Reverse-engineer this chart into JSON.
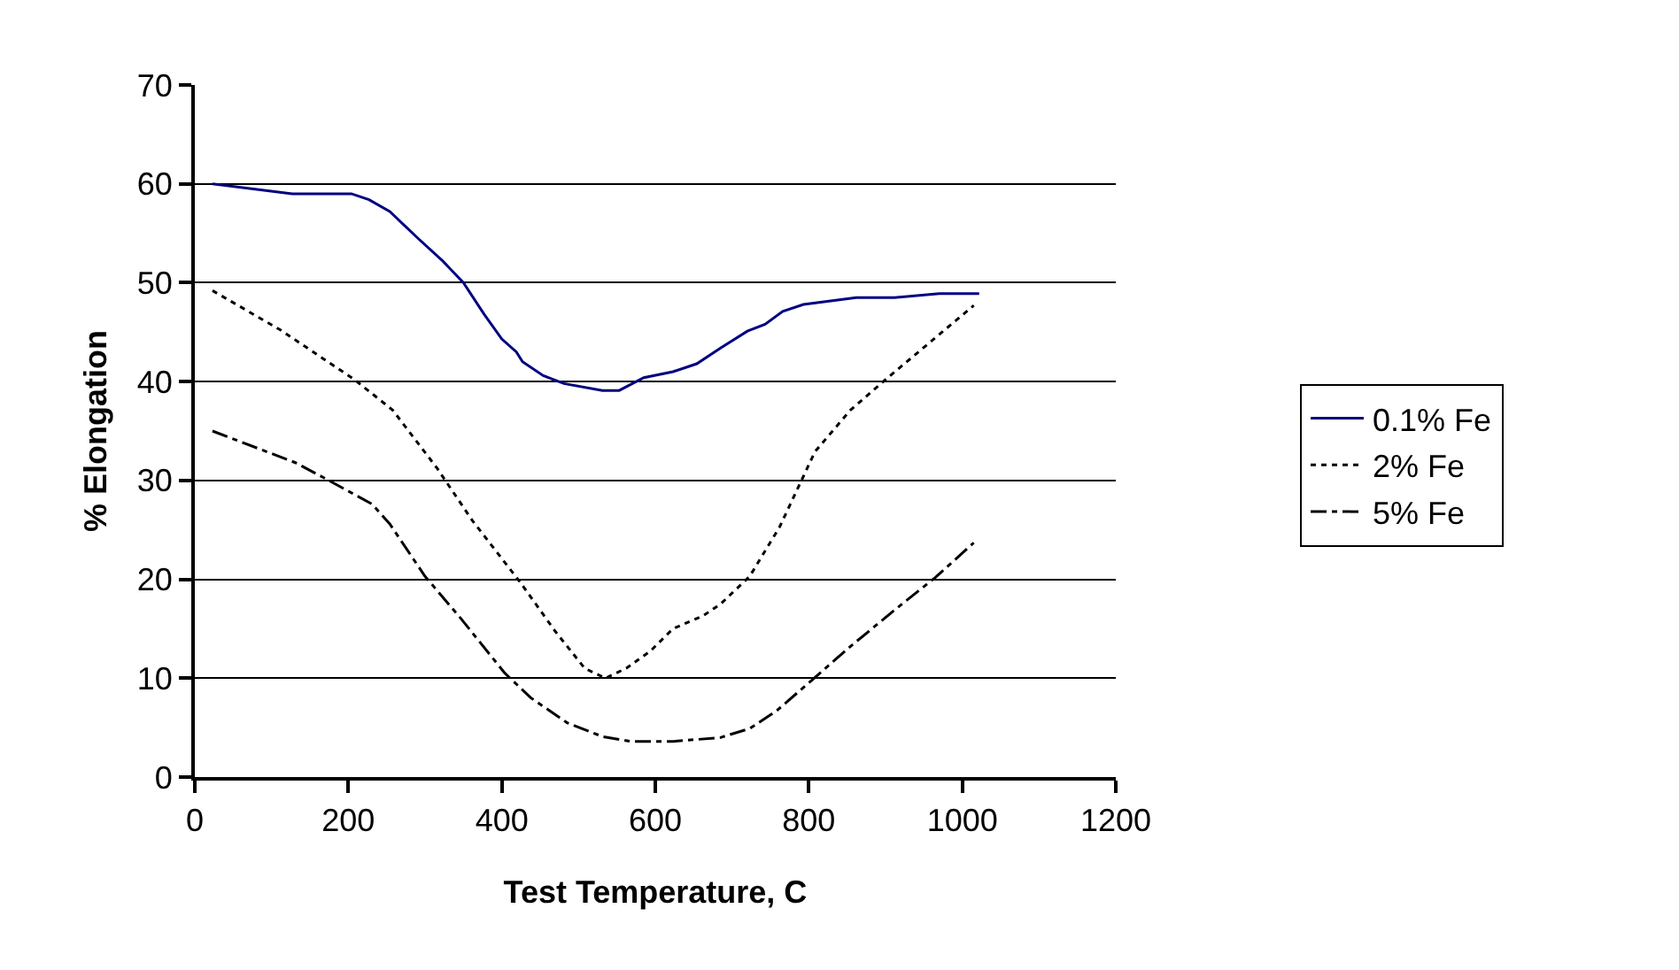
{
  "chart_data": {
    "type": "line",
    "xlabel": "Test Temperature, C",
    "ylabel": "% Elongation",
    "xlim": [
      0,
      1200
    ],
    "xticks": [
      0,
      200,
      400,
      600,
      800,
      1000,
      1200
    ],
    "ylim": [
      0,
      70
    ],
    "yticks": [
      0,
      10,
      20,
      30,
      40,
      50,
      60,
      70
    ],
    "grid": "y",
    "legend": "right",
    "marker": "none",
    "series": [
      {
        "name": "0.1% Fe",
        "color": "#000080",
        "line_style": "solid",
        "x": [
          23,
          127,
          204,
          227,
          254,
          292,
          323,
          350,
          377,
          400,
          419,
          427,
          454,
          481,
          531,
          553,
          585,
          623,
          654,
          685,
          720,
          743,
          766,
          793,
          862,
          912,
          970,
          1022
        ],
        "values": [
          60,
          59,
          59,
          58.4,
          57.2,
          54.4,
          52.2,
          50,
          46.8,
          44.3,
          43,
          42,
          40.6,
          39.8,
          39.1,
          39.1,
          40.4,
          41,
          41.8,
          43.4,
          45.1,
          45.8,
          47.1,
          47.8,
          48.5,
          48.5,
          48.9,
          48.9
        ]
      },
      {
        "name": "2% Fe",
        "color": "#000000",
        "line_style": "dotted",
        "x": [
          23,
          112,
          208,
          258,
          316,
          362,
          424,
          470,
          508,
          535,
          562,
          593,
          623,
          662,
          685,
          723,
          762,
          808,
          854,
          900,
          946,
          1015
        ],
        "values": [
          49.2,
          45.2,
          40.2,
          37.1,
          31.2,
          25.9,
          19.7,
          14.7,
          11,
          10,
          11,
          12.7,
          15,
          16.3,
          17.5,
          20.3,
          25.3,
          32.9,
          37.1,
          40.2,
          43.2,
          47.7
        ]
      },
      {
        "name": "5% Fe",
        "color": "#000000",
        "line_style": "dashdot",
        "x": [
          23,
          131,
          177,
          231,
          254,
          300,
          346,
          404,
          438,
          485,
          531,
          569,
          623,
          685,
          723,
          758,
          804,
          854,
          915,
          965,
          1015
        ],
        "values": [
          35,
          31.8,
          29.9,
          27.6,
          25.6,
          20.3,
          16.1,
          10.5,
          8,
          5.5,
          4.1,
          3.6,
          3.6,
          4,
          4.9,
          6.7,
          9.8,
          13.2,
          17.1,
          20.2,
          23.7
        ]
      }
    ]
  }
}
